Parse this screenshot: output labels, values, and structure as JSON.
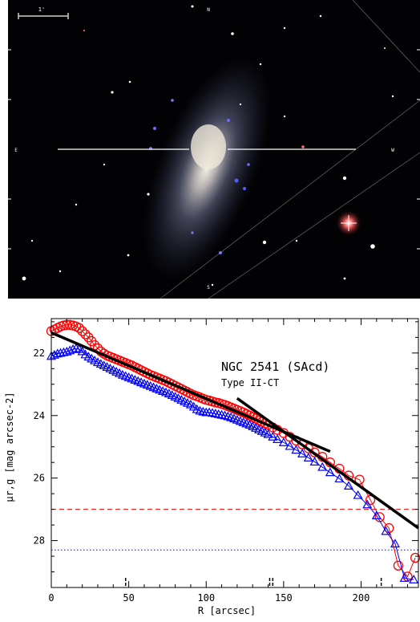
{
  "image_panel": {
    "scale_label": "1'",
    "north_label": "N",
    "east_label": "E",
    "west_label": "W",
    "south_label": "S"
  },
  "chart_data": {
    "type": "scatter",
    "title": "NGC 2541 (SAcd)",
    "subtitle": "Type II-CT",
    "xlabel": "R [arcsec]",
    "ylabel": "μr,g [mag arcsec-2]",
    "xlim": [
      0,
      237
    ],
    "ylim": [
      29.5,
      20.9
    ],
    "x_ticks": [
      0,
      50,
      100,
      150,
      200
    ],
    "y_ticks": [
      22,
      24,
      26,
      28
    ],
    "y_reversed": true,
    "series": [
      {
        "marker": "circle",
        "color": "#ff0000",
        "points": [
          [
            0,
            21.3
          ],
          [
            2,
            21.25
          ],
          [
            4,
            21.2
          ],
          [
            6,
            21.15
          ],
          [
            8,
            21.12
          ],
          [
            10,
            21.1
          ],
          [
            12,
            21.1
          ],
          [
            14,
            21.12
          ],
          [
            16,
            21.15
          ],
          [
            18,
            21.2
          ],
          [
            20,
            21.3
          ],
          [
            22,
            21.4
          ],
          [
            24,
            21.5
          ],
          [
            26,
            21.62
          ],
          [
            28,
            21.75
          ],
          [
            30,
            21.85
          ],
          [
            32,
            21.95
          ],
          [
            34,
            22.02
          ],
          [
            36,
            22.08
          ],
          [
            38,
            22.12
          ],
          [
            40,
            22.16
          ],
          [
            42,
            22.2
          ],
          [
            44,
            22.24
          ],
          [
            46,
            22.28
          ],
          [
            48,
            22.32
          ],
          [
            50,
            22.36
          ],
          [
            52,
            22.4
          ],
          [
            54,
            22.45
          ],
          [
            56,
            22.5
          ],
          [
            58,
            22.55
          ],
          [
            60,
            22.6
          ],
          [
            62,
            22.65
          ],
          [
            64,
            22.7
          ],
          [
            66,
            22.74
          ],
          [
            68,
            22.78
          ],
          [
            70,
            22.82
          ],
          [
            72,
            22.86
          ],
          [
            74,
            22.9
          ],
          [
            76,
            22.95
          ],
          [
            78,
            23.0
          ],
          [
            80,
            23.05
          ],
          [
            82,
            23.1
          ],
          [
            84,
            23.15
          ],
          [
            86,
            23.2
          ],
          [
            88,
            23.25
          ],
          [
            90,
            23.3
          ],
          [
            92,
            23.35
          ],
          [
            94,
            23.38
          ],
          [
            96,
            23.42
          ],
          [
            98,
            23.46
          ],
          [
            100,
            23.5
          ],
          [
            102,
            23.52
          ],
          [
            104,
            23.55
          ],
          [
            106,
            23.58
          ],
          [
            108,
            23.6
          ],
          [
            110,
            23.63
          ],
          [
            112,
            23.66
          ],
          [
            114,
            23.7
          ],
          [
            116,
            23.74
          ],
          [
            118,
            23.78
          ],
          [
            120,
            23.82
          ],
          [
            122,
            23.86
          ],
          [
            124,
            23.9
          ],
          [
            126,
            23.95
          ],
          [
            128,
            24.0
          ],
          [
            130,
            24.05
          ],
          [
            132,
            24.1
          ],
          [
            134,
            24.15
          ],
          [
            136,
            24.2
          ],
          [
            138,
            24.25
          ],
          [
            140,
            24.3
          ],
          [
            143,
            24.38
          ],
          [
            146,
            24.46
          ],
          [
            150,
            24.56
          ],
          [
            154,
            24.68
          ],
          [
            158,
            24.8
          ],
          [
            162,
            24.92
          ],
          [
            166,
            25.05
          ],
          [
            170,
            25.18
          ],
          [
            175,
            25.32
          ],
          [
            180,
            25.5
          ],
          [
            186,
            25.7
          ],
          [
            192,
            25.92
          ],
          [
            199,
            26.05
          ],
          [
            206,
            26.7
          ],
          [
            212,
            27.25
          ],
          [
            218,
            27.6
          ],
          [
            224,
            28.8
          ],
          [
            230,
            29.15
          ],
          [
            235,
            28.55
          ]
        ]
      },
      {
        "marker": "triangle",
        "color": "#0000ff",
        "points": [
          [
            0,
            22.1
          ],
          [
            2,
            22.06
          ],
          [
            4,
            22.02
          ],
          [
            6,
            22.0
          ],
          [
            8,
            21.98
          ],
          [
            10,
            21.96
          ],
          [
            12,
            21.92
          ],
          [
            14,
            21.88
          ],
          [
            16,
            21.85
          ],
          [
            18,
            21.88
          ],
          [
            20,
            21.95
          ],
          [
            22,
            22.05
          ],
          [
            24,
            22.12
          ],
          [
            26,
            22.18
          ],
          [
            28,
            22.24
          ],
          [
            30,
            22.3
          ],
          [
            32,
            22.35
          ],
          [
            34,
            22.4
          ],
          [
            36,
            22.45
          ],
          [
            38,
            22.5
          ],
          [
            40,
            22.55
          ],
          [
            42,
            22.6
          ],
          [
            44,
            22.65
          ],
          [
            46,
            22.7
          ],
          [
            48,
            22.74
          ],
          [
            50,
            22.78
          ],
          [
            52,
            22.82
          ],
          [
            54,
            22.86
          ],
          [
            56,
            22.9
          ],
          [
            58,
            22.94
          ],
          [
            60,
            22.98
          ],
          [
            62,
            23.02
          ],
          [
            64,
            23.06
          ],
          [
            66,
            23.1
          ],
          [
            68,
            23.14
          ],
          [
            70,
            23.18
          ],
          [
            72,
            23.22
          ],
          [
            74,
            23.26
          ],
          [
            76,
            23.3
          ],
          [
            78,
            23.35
          ],
          [
            80,
            23.4
          ],
          [
            82,
            23.45
          ],
          [
            84,
            23.5
          ],
          [
            86,
            23.55
          ],
          [
            88,
            23.6
          ],
          [
            90,
            23.65
          ],
          [
            92,
            23.72
          ],
          [
            94,
            23.8
          ],
          [
            96,
            23.85
          ],
          [
            98,
            23.88
          ],
          [
            100,
            23.9
          ],
          [
            102,
            23.9
          ],
          [
            104,
            23.92
          ],
          [
            106,
            23.94
          ],
          [
            108,
            23.96
          ],
          [
            110,
            23.98
          ],
          [
            112,
            24.0
          ],
          [
            114,
            24.03
          ],
          [
            116,
            24.06
          ],
          [
            118,
            24.1
          ],
          [
            120,
            24.14
          ],
          [
            122,
            24.18
          ],
          [
            124,
            24.22
          ],
          [
            126,
            24.26
          ],
          [
            128,
            24.3
          ],
          [
            130,
            24.35
          ],
          [
            132,
            24.4
          ],
          [
            134,
            24.45
          ],
          [
            136,
            24.5
          ],
          [
            138,
            24.55
          ],
          [
            140,
            24.6
          ],
          [
            143,
            24.68
          ],
          [
            146,
            24.76
          ],
          [
            150,
            24.86
          ],
          [
            154,
            24.98
          ],
          [
            158,
            25.1
          ],
          [
            162,
            25.22
          ],
          [
            166,
            25.35
          ],
          [
            170,
            25.48
          ],
          [
            175,
            25.65
          ],
          [
            180,
            25.82
          ],
          [
            186,
            26.02
          ],
          [
            192,
            26.25
          ],
          [
            198,
            26.55
          ],
          [
            204,
            26.85
          ],
          [
            210,
            27.2
          ],
          [
            216,
            27.7
          ],
          [
            222,
            28.1
          ],
          [
            228,
            29.2
          ],
          [
            234,
            29.25
          ]
        ]
      }
    ],
    "fits": [
      {
        "x": [
          0,
          180
        ],
        "y": [
          21.35,
          25.15
        ]
      },
      {
        "x": [
          120,
          237
        ],
        "y": [
          23.45,
          27.6
        ]
      }
    ],
    "limits": [
      {
        "y": 27.0,
        "color": "#ff0000",
        "style": "dashed"
      },
      {
        "y": 28.3,
        "color": "#0000ff",
        "style": "dotted"
      }
    ],
    "break_markers": [
      48,
      141,
      143,
      213
    ]
  }
}
